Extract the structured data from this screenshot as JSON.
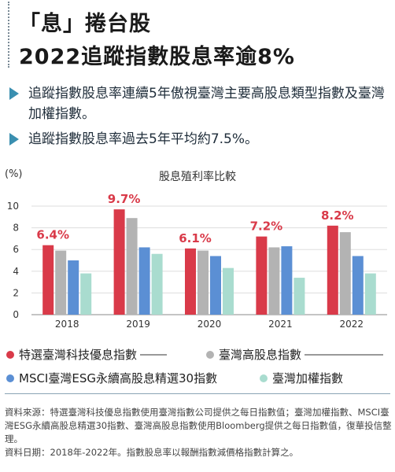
{
  "header": {
    "title_line1": "「息」捲台股",
    "title_line2": "2022追蹤指數股息率逾8%"
  },
  "bullets": [
    "追蹤指數股息率連續5年傲視臺灣主要高股息類型指數及臺灣加權指數。",
    "追蹤指數股息率過去5年平均約7.5%。"
  ],
  "chart_data": {
    "type": "bar",
    "title": "股息殖利率比較",
    "ylabel": "(%)",
    "ylim": [
      0,
      10
    ],
    "yticks": [
      0,
      2,
      4,
      6,
      8,
      10
    ],
    "categories": [
      "2018",
      "2019",
      "2020",
      "2021",
      "2022"
    ],
    "series": [
      {
        "name": "特選臺灣科技優息指數",
        "color": "#d93a49",
        "values": [
          6.4,
          9.7,
          6.1,
          7.2,
          8.2
        ]
      },
      {
        "name": "臺灣高股息指數",
        "color": "#b3b3b3",
        "values": [
          5.9,
          8.9,
          5.9,
          6.2,
          7.6
        ]
      },
      {
        "name": "MSCI臺灣ESG永續高股息精選30指數",
        "color": "#5b8fd4",
        "values": [
          5.0,
          6.2,
          5.4,
          6.3,
          5.4
        ]
      },
      {
        "name": "臺灣加權指數",
        "color": "#a9dccf",
        "values": [
          3.8,
          5.6,
          4.3,
          3.4,
          3.8
        ]
      }
    ],
    "data_labels": [
      "6.4%",
      "9.7%",
      "6.1%",
      "7.2%",
      "8.2%"
    ],
    "label_color": "#d93a49"
  },
  "source": {
    "line1": "資料來源：特選臺灣科技優息指數使用臺灣指數公司提供之每日指數值；臺灣加權指數、MSCI臺灣ESG永續高股息精選30指數、臺灣高股息指數使用Bloomberg提供之每日指數值，復華投信整理。",
    "line2": "資料日期：2018年-2022年。指數股息率以報酬指數減價格指數計算之。"
  }
}
